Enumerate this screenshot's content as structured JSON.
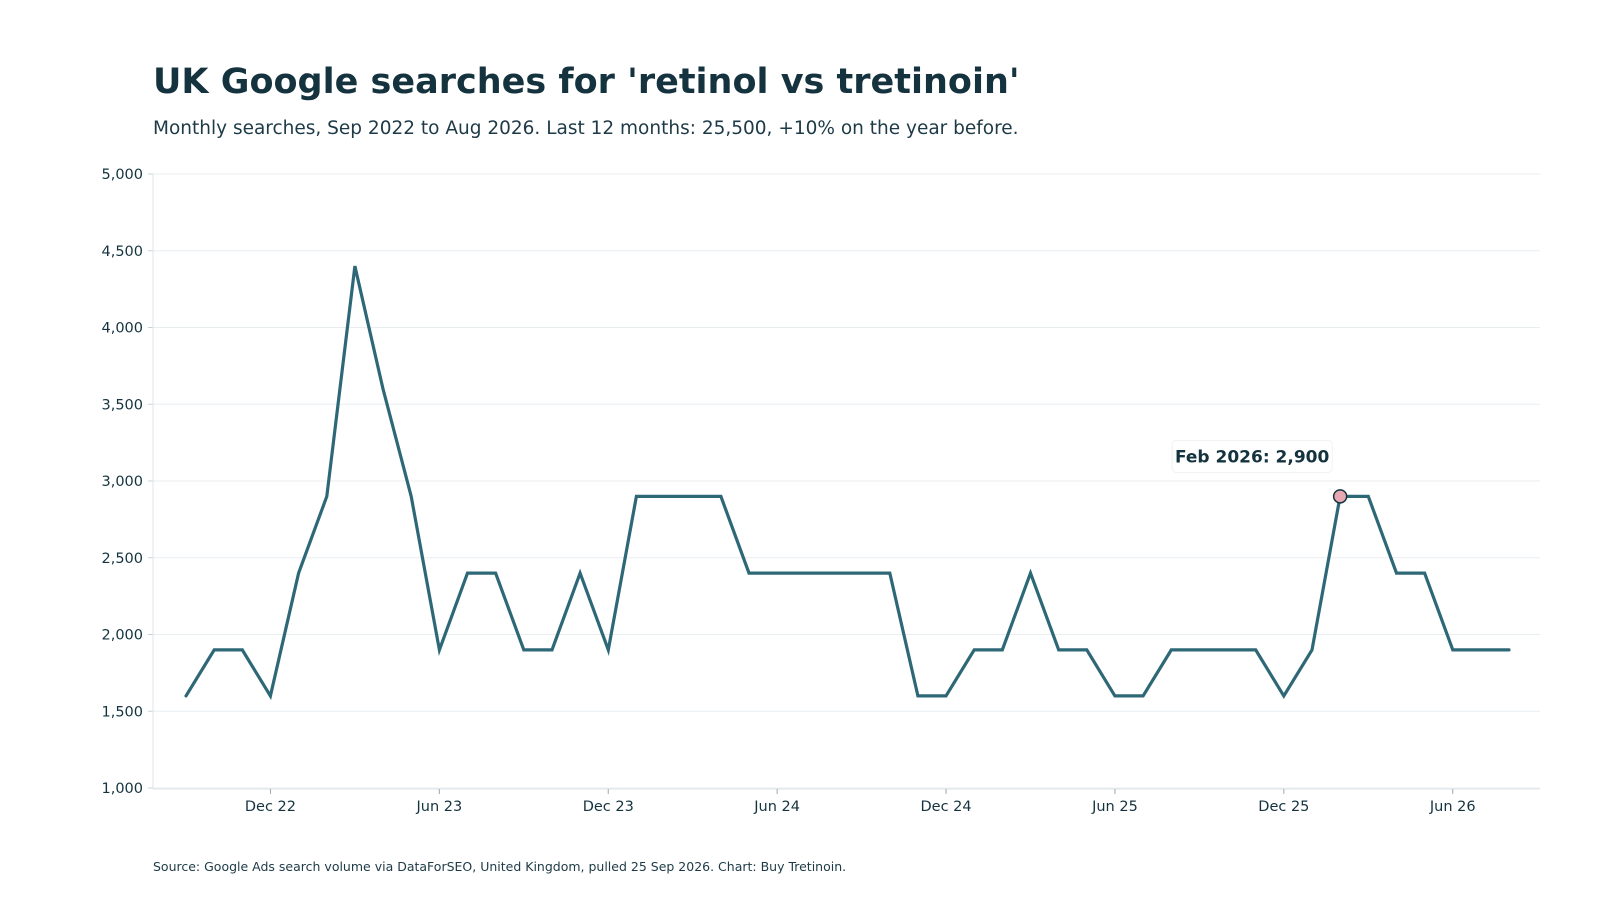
{
  "title": "UK Google searches for 'retinol vs tretinoin'",
  "subtitle": "Monthly searches, Sep 2022 to Aug 2026. Last 12 months: 25,500, +10% on the year before.",
  "source": "Source: Google Ads search volume via DataForSEO, United Kingdom, pulled 25 Sep 2026. Chart: Buy Tretinoin.",
  "colors": {
    "line": "#2e6877",
    "highlight_marker": "#e8a8b2",
    "text": "#15333f",
    "grid": "#e8eef0"
  },
  "chart_data": {
    "type": "line",
    "title": "UK Google searches for 'retinol vs tretinoin'",
    "xlabel": "",
    "ylabel": "",
    "ylim": [
      1000,
      5000
    ],
    "yticks": [
      1000,
      1500,
      2000,
      2500,
      3000,
      3500,
      4000,
      4500,
      5000
    ],
    "ytick_labels": [
      "1,000",
      "1,500",
      "2,000",
      "2,500",
      "3,000",
      "3,500",
      "4,000",
      "4,500",
      "5,000"
    ],
    "xticks": [
      {
        "label": "Dec 22",
        "month": "2022-12"
      },
      {
        "label": "Jun 23",
        "month": "2023-06"
      },
      {
        "label": "Dec 23",
        "month": "2023-12"
      },
      {
        "label": "Jun 24",
        "month": "2024-06"
      },
      {
        "label": "Dec 24",
        "month": "2024-12"
      },
      {
        "label": "Jun 25",
        "month": "2025-06"
      },
      {
        "label": "Dec 25",
        "month": "2025-12"
      },
      {
        "label": "Jun 26",
        "month": "2026-06"
      }
    ],
    "grid": true,
    "series": [
      {
        "x": [
          "2022-09",
          "2022-10",
          "2022-11",
          "2022-12",
          "2023-01",
          "2023-02",
          "2023-03",
          "2023-04",
          "2023-05",
          "2023-06",
          "2023-07",
          "2023-08",
          "2023-09",
          "2023-10",
          "2023-11",
          "2023-12",
          "2024-01",
          "2024-02",
          "2024-03",
          "2024-04",
          "2024-05",
          "2024-06",
          "2024-07",
          "2024-08",
          "2024-09",
          "2024-10",
          "2024-11",
          "2024-12",
          "2025-01",
          "2025-02",
          "2025-03",
          "2025-04",
          "2025-05",
          "2025-06",
          "2025-07",
          "2025-08",
          "2025-09",
          "2025-10",
          "2025-11",
          "2025-12",
          "2026-01",
          "2026-02",
          "2026-03",
          "2026-04",
          "2026-05",
          "2026-06",
          "2026-07",
          "2026-08"
        ],
        "values": [
          1600,
          1900,
          1900,
          1600,
          2400,
          2900,
          4400,
          3600,
          2900,
          1900,
          2400,
          2400,
          1900,
          1900,
          2400,
          1900,
          2900,
          2900,
          2900,
          2900,
          2400,
          2400,
          2400,
          2400,
          2400,
          2400,
          1600,
          1600,
          1900,
          1900,
          2400,
          1900,
          1900,
          1600,
          1600,
          1900,
          1900,
          1900,
          1900,
          1600,
          1900,
          2900,
          2900,
          2400,
          2400,
          1900,
          1900,
          1900
        ]
      }
    ],
    "annotation": {
      "text": "Feb 2026: 2,900",
      "month": "2026-02",
      "value": 2900
    }
  }
}
